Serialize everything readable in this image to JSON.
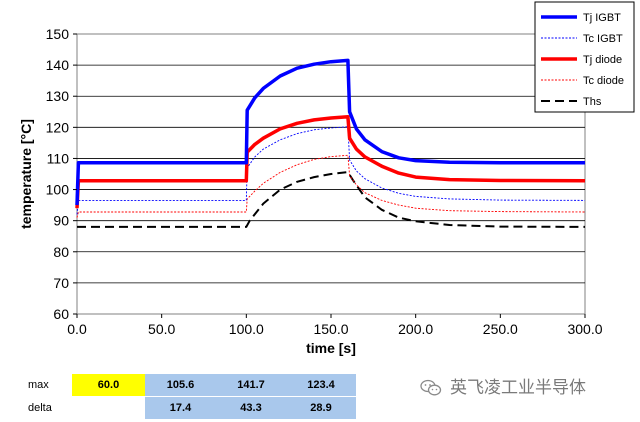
{
  "chart_data": {
    "type": "line",
    "title": "",
    "xlabel": "time [s]",
    "ylabel": "temperature [°C]",
    "xlim": [
      0,
      300
    ],
    "ylim": [
      60,
      150
    ],
    "xticks": [
      "0.0",
      "50.0",
      "100.0",
      "150.0",
      "200.0",
      "250.0",
      "300.0"
    ],
    "yticks": [
      "60",
      "70",
      "80",
      "90",
      "100",
      "110",
      "120",
      "130",
      "140",
      "150"
    ],
    "grid": "horizontal",
    "legend_position": "top-right",
    "series": [
      {
        "name": "Tj IGBT",
        "color": "#0000ff",
        "style": "solid-thick",
        "points": [
          [
            0,
            95
          ],
          [
            0.8,
            108.6
          ],
          [
            100,
            108.6
          ],
          [
            100.5,
            125.5
          ],
          [
            105,
            129.5
          ],
          [
            110,
            132.5
          ],
          [
            120,
            136.5
          ],
          [
            130,
            139
          ],
          [
            140,
            140.3
          ],
          [
            150,
            141.1
          ],
          [
            160,
            141.5
          ],
          [
            161,
            125
          ],
          [
            165,
            119.5
          ],
          [
            170,
            116
          ],
          [
            180,
            112.2
          ],
          [
            190,
            110.2
          ],
          [
            200,
            109.3
          ],
          [
            220,
            108.8
          ],
          [
            250,
            108.6
          ],
          [
            300,
            108.6
          ]
        ]
      },
      {
        "name": "Tc IGBT",
        "color": "#0000ff",
        "style": "dotted-thin",
        "points": [
          [
            0,
            92
          ],
          [
            0.8,
            96.5
          ],
          [
            100,
            96.5
          ],
          [
            100.5,
            107
          ],
          [
            105,
            110.5
          ],
          [
            110,
            113
          ],
          [
            120,
            116
          ],
          [
            130,
            118
          ],
          [
            140,
            119.2
          ],
          [
            150,
            119.8
          ],
          [
            160,
            120.2
          ],
          [
            161,
            109.5
          ],
          [
            165,
            106
          ],
          [
            170,
            103.5
          ],
          [
            180,
            100.5
          ],
          [
            190,
            98.8
          ],
          [
            200,
            97.8
          ],
          [
            220,
            97
          ],
          [
            250,
            96.6
          ],
          [
            300,
            96.5
          ]
        ]
      },
      {
        "name": "Tj diode",
        "color": "#ff0000",
        "style": "solid-thick",
        "points": [
          [
            0,
            94
          ],
          [
            0.8,
            102.8
          ],
          [
            100,
            102.8
          ],
          [
            100.5,
            112
          ],
          [
            105,
            114.5
          ],
          [
            110,
            116.5
          ],
          [
            120,
            119.5
          ],
          [
            130,
            121.3
          ],
          [
            140,
            122.4
          ],
          [
            150,
            123
          ],
          [
            160,
            123.4
          ],
          [
            161,
            116.5
          ],
          [
            165,
            113
          ],
          [
            170,
            110.5
          ],
          [
            180,
            107.5
          ],
          [
            190,
            105.3
          ],
          [
            200,
            104
          ],
          [
            220,
            103.2
          ],
          [
            250,
            102.9
          ],
          [
            300,
            102.8
          ]
        ]
      },
      {
        "name": "Tc diode",
        "color": "#ff0000",
        "style": "dotted-thin",
        "points": [
          [
            0,
            91
          ],
          [
            0.8,
            92.8
          ],
          [
            100,
            92.8
          ],
          [
            100.5,
            97
          ],
          [
            105,
            99.5
          ],
          [
            110,
            102
          ],
          [
            120,
            105.5
          ],
          [
            130,
            108
          ],
          [
            140,
            109.7
          ],
          [
            150,
            110.6
          ],
          [
            160,
            111
          ],
          [
            161,
            104.5
          ],
          [
            165,
            101.5
          ],
          [
            170,
            99
          ],
          [
            180,
            96.5
          ],
          [
            190,
            95
          ],
          [
            200,
            94
          ],
          [
            220,
            93.2
          ],
          [
            250,
            92.9
          ],
          [
            300,
            92.8
          ]
        ]
      },
      {
        "name": "Ths",
        "color": "#000000",
        "style": "dashed",
        "points": [
          [
            0,
            88
          ],
          [
            100,
            88
          ],
          [
            102,
            90
          ],
          [
            110,
            95.5
          ],
          [
            120,
            100
          ],
          [
            130,
            102.5
          ],
          [
            140,
            104
          ],
          [
            150,
            105
          ],
          [
            160,
            105.6
          ],
          [
            163,
            103
          ],
          [
            170,
            97.5
          ],
          [
            180,
            93.5
          ],
          [
            190,
            91
          ],
          [
            200,
            89.8
          ],
          [
            220,
            88.6
          ],
          [
            250,
            88.1
          ],
          [
            300,
            88
          ]
        ]
      }
    ]
  },
  "stats": {
    "max_label": "max",
    "delta_label": "delta",
    "max_values": [
      "60.0",
      "105.6",
      "141.7",
      "123.4"
    ],
    "delta_values": [
      "17.4",
      "43.3",
      "28.9"
    ],
    "highlight_yellow": "#ffff00",
    "highlight_blue": "#a9c8ec"
  },
  "watermark": {
    "text": "英飞凌工业半导体",
    "icon": "wechat-icon"
  }
}
